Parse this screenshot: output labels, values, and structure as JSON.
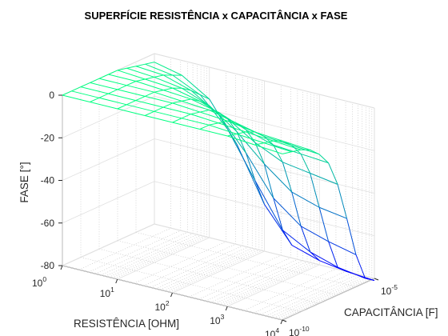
{
  "chart_data": {
    "type": "surface",
    "title": "SUPERFÍCIE RESISTÊNCIA x CAPACITÂNCIA x FASE",
    "xlabel": "RESISTÊNCIA [OHM]",
    "ylabel": "CAPACITÂNCIA [F]",
    "zlabel": "FASE [°]",
    "x_scale": "log",
    "y_scale": "log",
    "xlim": [
      1,
      10000
    ],
    "ylim": [
      1e-10,
      1e-05
    ],
    "zlim": [
      -80,
      0
    ],
    "grid": true,
    "colormap": "winter (blue = low, green = high)",
    "x_ticks": [
      {
        "base": "10",
        "exp": "0"
      },
      {
        "base": "10",
        "exp": "1"
      },
      {
        "base": "10",
        "exp": "2"
      },
      {
        "base": "10",
        "exp": "3"
      },
      {
        "base": "10",
        "exp": "4"
      }
    ],
    "y_ticks": [
      {
        "base": "10",
        "exp": "-10"
      },
      {
        "base": "10",
        "exp": "-5"
      }
    ],
    "z_ticks": [
      "0",
      "-20",
      "-40",
      "-60",
      "-80"
    ],
    "resistance_log10": [
      0,
      0.5,
      1.0,
      1.5,
      2.0,
      2.5,
      3.0,
      3.5,
      4.0
    ],
    "capacitance_log10": [
      -10,
      -9.5,
      -9,
      -8.5,
      -8,
      -7.5,
      -7,
      -6.5,
      -6,
      -5.5,
      -5
    ],
    "phase_deg": [
      [
        0,
        0,
        0,
        0,
        0,
        0,
        0,
        -1,
        -2,
        -3,
        -4
      ],
      [
        0,
        0,
        0,
        0,
        0,
        0,
        -1,
        -2,
        -3,
        -5,
        -7
      ],
      [
        0,
        0,
        0,
        0,
        0,
        -1,
        -2,
        -4,
        -7,
        -11,
        -15
      ],
      [
        0,
        0,
        0,
        0,
        -1,
        -2,
        -5,
        -9,
        -15,
        -24,
        -33
      ],
      [
        0,
        0,
        0,
        -1,
        -2,
        -5,
        -10,
        -18,
        -30,
        -45,
        -58
      ],
      [
        0,
        0,
        -1,
        -2,
        -5,
        -10,
        -18,
        -30,
        -48,
        -65,
        -74
      ],
      [
        0,
        -1,
        -2,
        -4,
        -8,
        -14,
        -24,
        -40,
        -58,
        -72,
        -78
      ],
      [
        -1,
        -2,
        -3,
        -5,
        -9,
        -15,
        -26,
        -44,
        -62,
        -76,
        -80
      ],
      [
        -2,
        -3,
        -4,
        -6,
        -10,
        -16,
        -28,
        -46,
        -65,
        -78,
        -81
      ]
    ]
  }
}
